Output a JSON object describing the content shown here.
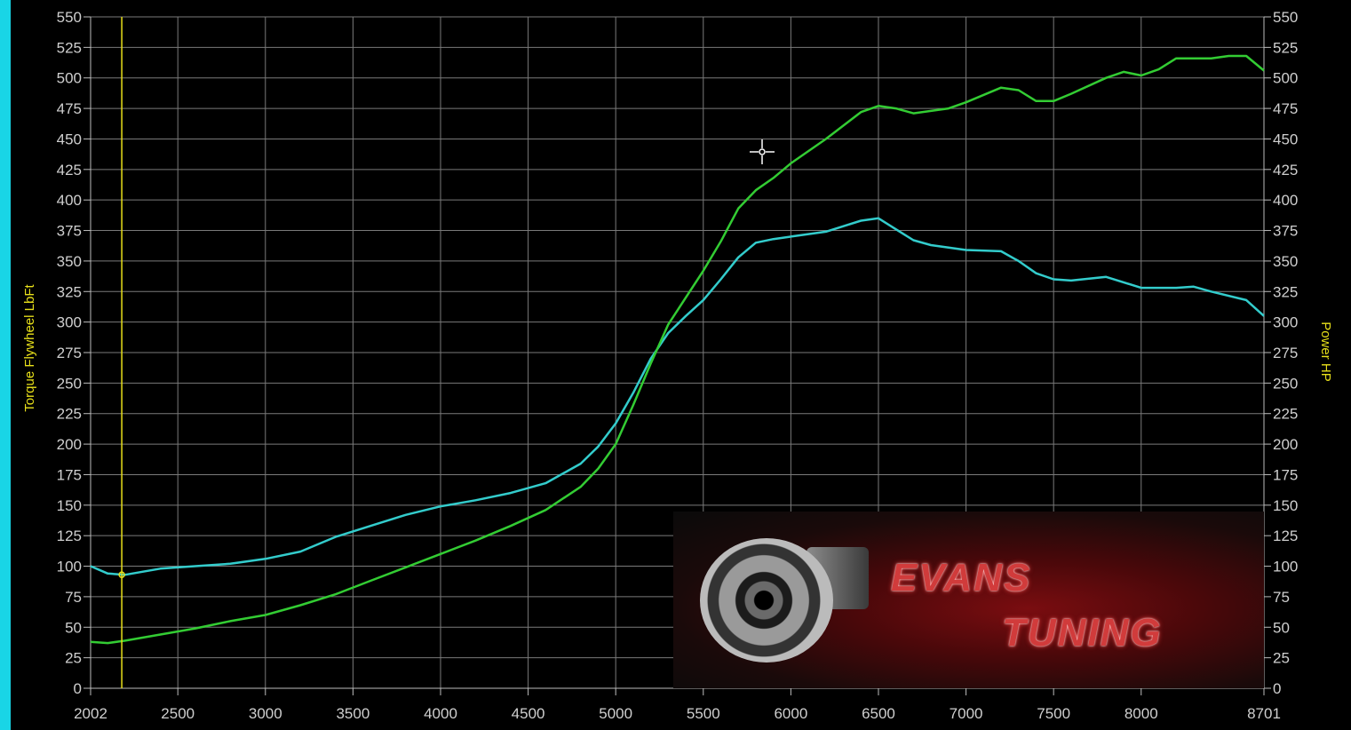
{
  "colors": {
    "background": "#000000",
    "grid": "#7a7a7a",
    "axis_title": "#e8e01a",
    "power_line": "#33cc33",
    "torque_line": "#33cccc",
    "cursor": "#e8e01a",
    "strip": "#19d5e6"
  },
  "logo": {
    "line1": "EVANS",
    "line2": "TUNING"
  },
  "chart_data": {
    "type": "line",
    "title": "",
    "xlabel": "",
    "ylabel_left": "Torque Flywheel LbFt",
    "ylabel_right": "Power HP",
    "xlim": [
      2002,
      8701
    ],
    "ylim": [
      0,
      550
    ],
    "grid": true,
    "x_ticks": [
      2002,
      2500,
      3000,
      3500,
      4000,
      4500,
      5000,
      5500,
      6000,
      6500,
      7000,
      7500,
      8000,
      8701
    ],
    "y_ticks": [
      0,
      25,
      50,
      75,
      100,
      125,
      150,
      175,
      200,
      225,
      250,
      275,
      300,
      325,
      350,
      375,
      400,
      425,
      450,
      475,
      500,
      525,
      550
    ],
    "cursor_x": 2180,
    "series": [
      {
        "key": "torque",
        "color": "#33cccc",
        "points": [
          [
            2002,
            100
          ],
          [
            2100,
            94
          ],
          [
            2200,
            93
          ],
          [
            2400,
            98
          ],
          [
            2600,
            100
          ],
          [
            2800,
            102
          ],
          [
            3000,
            106
          ],
          [
            3200,
            112
          ],
          [
            3400,
            124
          ],
          [
            3600,
            133
          ],
          [
            3800,
            142
          ],
          [
            4000,
            149
          ],
          [
            4200,
            154
          ],
          [
            4400,
            160
          ],
          [
            4600,
            168
          ],
          [
            4800,
            184
          ],
          [
            4900,
            198
          ],
          [
            5000,
            217
          ],
          [
            5100,
            242
          ],
          [
            5200,
            270
          ],
          [
            5300,
            291
          ],
          [
            5400,
            305
          ],
          [
            5500,
            318
          ],
          [
            5600,
            335
          ],
          [
            5700,
            353
          ],
          [
            5800,
            365
          ],
          [
            5900,
            368
          ],
          [
            6000,
            370
          ],
          [
            6200,
            374
          ],
          [
            6400,
            383
          ],
          [
            6500,
            385
          ],
          [
            6600,
            376
          ],
          [
            6700,
            367
          ],
          [
            6800,
            363
          ],
          [
            7000,
            359
          ],
          [
            7200,
            358
          ],
          [
            7300,
            350
          ],
          [
            7400,
            340
          ],
          [
            7500,
            335
          ],
          [
            7600,
            334
          ],
          [
            7800,
            337
          ],
          [
            8000,
            328
          ],
          [
            8200,
            328
          ],
          [
            8300,
            329
          ],
          [
            8400,
            325
          ],
          [
            8600,
            318
          ],
          [
            8701,
            305
          ]
        ]
      },
      {
        "key": "power",
        "color": "#33cc33",
        "points": [
          [
            2002,
            38
          ],
          [
            2100,
            37
          ],
          [
            2200,
            39
          ],
          [
            2400,
            44
          ],
          [
            2600,
            49
          ],
          [
            2800,
            55
          ],
          [
            3000,
            60
          ],
          [
            3200,
            68
          ],
          [
            3400,
            77
          ],
          [
            3600,
            88
          ],
          [
            3800,
            99
          ],
          [
            4000,
            110
          ],
          [
            4200,
            121
          ],
          [
            4400,
            133
          ],
          [
            4600,
            146
          ],
          [
            4800,
            165
          ],
          [
            4900,
            180
          ],
          [
            5000,
            200
          ],
          [
            5100,
            232
          ],
          [
            5200,
            266
          ],
          [
            5300,
            298
          ],
          [
            5400,
            320
          ],
          [
            5500,
            342
          ],
          [
            5600,
            366
          ],
          [
            5700,
            393
          ],
          [
            5800,
            408
          ],
          [
            5900,
            418
          ],
          [
            6000,
            430
          ],
          [
            6200,
            450
          ],
          [
            6400,
            472
          ],
          [
            6500,
            477
          ],
          [
            6600,
            475
          ],
          [
            6700,
            471
          ],
          [
            6900,
            475
          ],
          [
            7000,
            480
          ],
          [
            7200,
            492
          ],
          [
            7300,
            490
          ],
          [
            7400,
            481
          ],
          [
            7500,
            481
          ],
          [
            7600,
            487
          ],
          [
            7800,
            500
          ],
          [
            7900,
            505
          ],
          [
            8000,
            502
          ],
          [
            8100,
            507
          ],
          [
            8200,
            516
          ],
          [
            8400,
            516
          ],
          [
            8500,
            518
          ],
          [
            8600,
            518
          ],
          [
            8701,
            506
          ]
        ]
      }
    ]
  }
}
